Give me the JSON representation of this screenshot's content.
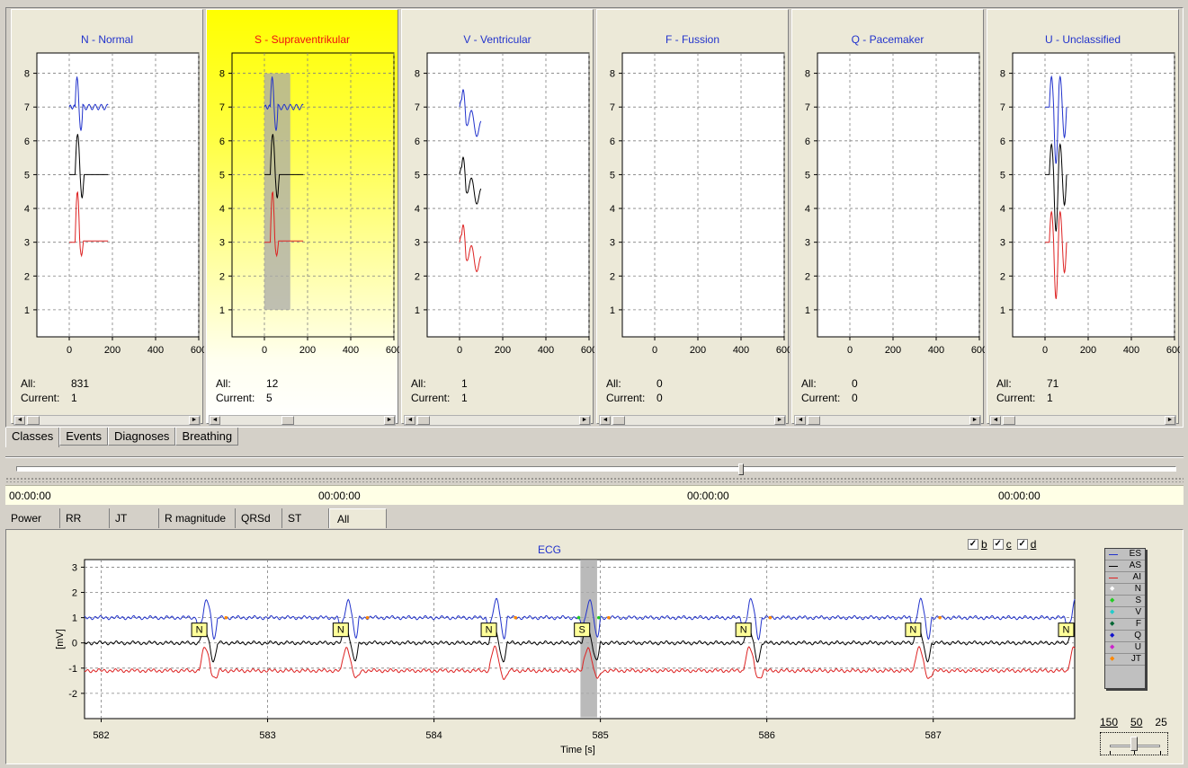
{
  "classes": [
    {
      "code": "N",
      "title": "N - Normal",
      "all_label": "All:",
      "all": "831",
      "current_label": "Current:",
      "current": "1",
      "selected": false,
      "shapes": [
        "b",
        "k",
        "r"
      ]
    },
    {
      "code": "S",
      "title": "S - Supraventrikular",
      "all_label": "All:",
      "all": "12",
      "current_label": "Current:",
      "current": "5",
      "selected": true,
      "shapes": [
        "b",
        "k",
        "r"
      ]
    },
    {
      "code": "V",
      "title": "V - Ventricular",
      "all_label": "All:",
      "all": "1",
      "current_label": "Current:",
      "current": "1",
      "selected": false,
      "shapes": [
        "v",
        "v",
        "v"
      ]
    },
    {
      "code": "F",
      "title": "F - Fussion",
      "all_label": "All:",
      "all": "0",
      "current_label": "Current:",
      "current": "0",
      "selected": false,
      "shapes": []
    },
    {
      "code": "Q",
      "title": "Q - Pacemaker",
      "all_label": "All:",
      "all": "0",
      "current_label": "Current:",
      "current": "0",
      "selected": false,
      "shapes": []
    },
    {
      "code": "U",
      "title": "U - Unclassified",
      "all_label": "All:",
      "all": "71",
      "current_label": "Current:",
      "current": "1",
      "selected": false,
      "shapes": [
        "u",
        "u",
        "u"
      ]
    }
  ],
  "mini_axis": {
    "y_ticks": [
      "1",
      "2",
      "3",
      "4",
      "5",
      "6",
      "7",
      "8"
    ],
    "x_ticks": [
      "0",
      "200",
      "400",
      "600"
    ]
  },
  "top_tabs": [
    {
      "label": "Classes",
      "active": true
    },
    {
      "label": "Events",
      "active": false
    },
    {
      "label": "Diagnoses",
      "active": false
    },
    {
      "label": "Breathing",
      "active": false
    }
  ],
  "timeline": {
    "times": [
      "00:00:00",
      "00:00:00",
      "00:00:00",
      "00:00:00"
    ],
    "position_fraction": 0.62
  },
  "mid_tabs": [
    {
      "label": "Power",
      "active": false
    },
    {
      "label": "RR",
      "active": false
    },
    {
      "label": "JT",
      "active": false
    },
    {
      "label": "R magnitude",
      "active": false
    },
    {
      "label": "QRSd",
      "active": false
    },
    {
      "label": "ST",
      "active": false
    },
    {
      "label": "All",
      "active": true
    }
  ],
  "ecg": {
    "title": "ECG",
    "ylabel": "[mV]",
    "xlabel": "Time [s]",
    "y_ticks": [
      "3",
      "2",
      "1",
      "0",
      "-1",
      "-2"
    ],
    "x_ticks": [
      "582",
      "583",
      "584",
      "585",
      "586",
      "587"
    ],
    "xlim": [
      581.9,
      587.85
    ],
    "ylim": [
      -3.0,
      3.3
    ],
    "beats": [
      {
        "t": 582.63,
        "cls": "N"
      },
      {
        "t": 583.48,
        "cls": "N"
      },
      {
        "t": 584.37,
        "cls": "N"
      },
      {
        "t": 584.93,
        "cls": "S"
      },
      {
        "t": 585.9,
        "cls": "N"
      },
      {
        "t": 586.92,
        "cls": "N"
      },
      {
        "t": 587.85,
        "cls": "N"
      }
    ],
    "selected_window": [
      584.88,
      584.98
    ],
    "offsets": {
      "ES": 1.0,
      "AS": 0.0,
      "AI": -1.1
    },
    "checks": [
      {
        "label": "b",
        "checked": true
      },
      {
        "label": "c",
        "checked": true
      },
      {
        "label": "d",
        "checked": true
      }
    ]
  },
  "legend": [
    {
      "label": "ES",
      "color": "#2233cc",
      "kind": "line"
    },
    {
      "label": "AS",
      "color": "#000000",
      "kind": "line"
    },
    {
      "label": "AI",
      "color": "#dd2222",
      "kind": "line"
    },
    {
      "label": "N",
      "color": "#ffffff",
      "kind": "dot"
    },
    {
      "label": "S",
      "color": "#22cc22",
      "kind": "dot"
    },
    {
      "label": "V",
      "color": "#22cccc",
      "kind": "dot"
    },
    {
      "label": "F",
      "color": "#006633",
      "kind": "dot"
    },
    {
      "label": "Q",
      "color": "#1111cc",
      "kind": "dot"
    },
    {
      "label": "U",
      "color": "#cc22cc",
      "kind": "dot"
    },
    {
      "label": "JT",
      "color": "#ff8800",
      "kind": "dot"
    }
  ],
  "speed": {
    "labels": [
      "150",
      "50",
      "25"
    ],
    "selected": "50"
  },
  "colors": {
    "blue": "#2233cc",
    "black": "#000000",
    "red": "#dd2222",
    "highlight": "#ffff00",
    "label_bg": "#ffff99"
  }
}
